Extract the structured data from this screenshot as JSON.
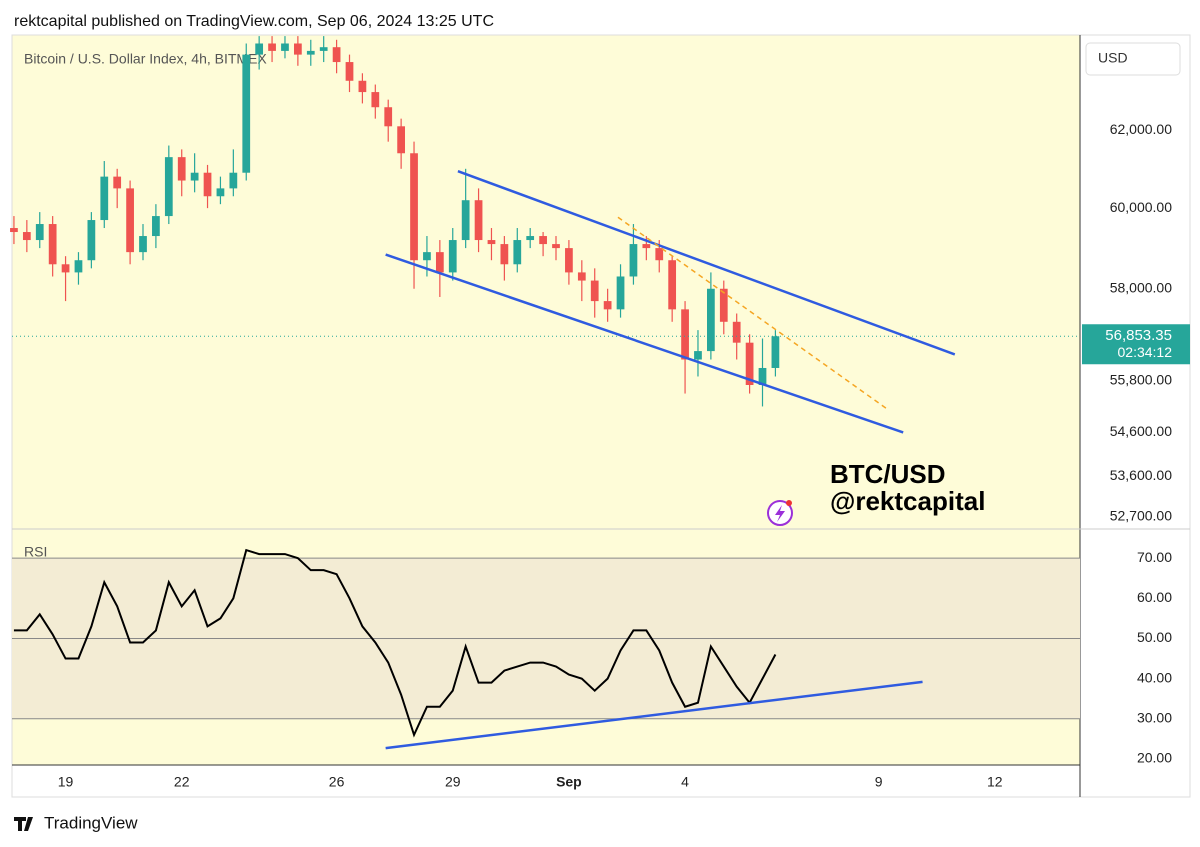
{
  "header": "rektcapital published on TradingView.com, Sep 06, 2024 13:25 UTC",
  "currency": "USD",
  "watermark": [
    "BTC/USD",
    "@rektcapital"
  ],
  "footer": "TradingView",
  "chart_data": [
    {
      "type": "candlestick",
      "title": "Bitcoin / U.S. Dollar Index, 4h, BITMEX",
      "log": true,
      "up_color": "#26a69a",
      "down_color": "#ef5350",
      "categories": [
        null,
        null,
        null,
        null,
        null,
        null,
        null,
        null,
        null,
        null,
        null,
        null,
        null,
        null,
        null,
        null,
        null,
        null,
        null,
        null,
        null,
        null,
        null,
        null,
        null,
        null,
        null,
        null,
        null,
        null,
        null,
        null,
        null,
        null,
        null,
        null,
        null,
        null,
        null,
        null,
        null,
        null,
        null,
        null,
        null,
        null,
        null,
        null,
        null,
        null,
        null,
        null,
        null,
        null,
        null,
        null,
        null,
        null,
        null,
        null
      ],
      "open": [
        59500,
        59400,
        59200,
        59600,
        58600,
        58400,
        58700,
        59700,
        60800,
        60500,
        58900,
        59300,
        59800,
        61300,
        60700,
        60900,
        60300,
        60500,
        60900,
        64000,
        64300,
        64100,
        64300,
        64000,
        64100,
        64200,
        63800,
        63300,
        63000,
        62600,
        62100,
        61400,
        58700,
        58900,
        58400,
        59200,
        60200,
        59200,
        59100,
        58600,
        59200,
        59300,
        59100,
        59000,
        58400,
        58200,
        57700,
        57500,
        58300,
        59100,
        59000,
        58700,
        57500,
        56300,
        56500,
        58000,
        57200,
        56700,
        55700,
        56100
      ],
      "high": [
        59800,
        59700,
        59900,
        59800,
        58800,
        58900,
        59900,
        61200,
        61000,
        60700,
        59600,
        60100,
        61600,
        61500,
        61400,
        61100,
        60800,
        61500,
        64300,
        64500,
        64500,
        64500,
        64500,
        64400,
        64500,
        64400,
        64000,
        63500,
        63200,
        62800,
        62300,
        61700,
        59300,
        59200,
        59500,
        61000,
        60500,
        59500,
        59300,
        59500,
        59500,
        59400,
        59300,
        59200,
        58700,
        58500,
        58000,
        58600,
        59600,
        59300,
        59200,
        58800,
        57700,
        57000,
        58400,
        58200,
        57400,
        56900,
        56800,
        57000
      ],
      "low": [
        59100,
        58900,
        59000,
        58300,
        57700,
        58100,
        58500,
        59500,
        60000,
        58600,
        58700,
        59000,
        59600,
        60300,
        60400,
        60000,
        60100,
        60300,
        60700,
        63600,
        63800,
        63900,
        63700,
        63700,
        63800,
        63500,
        63000,
        62700,
        62300,
        61700,
        61000,
        58000,
        58300,
        57800,
        58200,
        59000,
        58900,
        58700,
        58200,
        58400,
        59000,
        58800,
        58700,
        58100,
        57700,
        57300,
        57200,
        57300,
        58100,
        58700,
        58400,
        57200,
        55500,
        55900,
        56300,
        56900,
        56300,
        55500,
        55200,
        55900
      ],
      "close": [
        59400,
        59200,
        59600,
        58600,
        58400,
        58700,
        59700,
        60800,
        60500,
        58900,
        59300,
        59800,
        61300,
        60700,
        60900,
        60300,
        60500,
        60900,
        64000,
        64300,
        64100,
        64300,
        64000,
        64100,
        64200,
        63800,
        63300,
        63000,
        62600,
        62100,
        61400,
        58700,
        58900,
        58400,
        59200,
        60200,
        59200,
        59100,
        58600,
        59200,
        59300,
        59100,
        59000,
        58400,
        58200,
        57700,
        57500,
        58300,
        59100,
        59000,
        58700,
        57500,
        56300,
        56500,
        58000,
        57200,
        56700,
        55700,
        56100,
        56853.35
      ],
      "last_price": 56853.35,
      "last_price_label": "56,853.35",
      "countdown": "02:34:12",
      "xlim": [
        -0.15,
        82.6
      ],
      "xticks": [
        {
          "value": 4,
          "label": "19"
        },
        {
          "value": 13,
          "label": "22"
        },
        {
          "value": 25,
          "label": "26"
        },
        {
          "value": 34,
          "label": "29"
        },
        {
          "value": 43,
          "label": "Sep",
          "bold": true
        },
        {
          "value": 52,
          "label": "4"
        },
        {
          "value": 67,
          "label": "9"
        },
        {
          "value": 76,
          "label": "12"
        }
      ],
      "ylim": [
        52450,
        64530
      ],
      "yticks": [
        {
          "value": 62000,
          "label": "62,000.00"
        },
        {
          "value": 60000,
          "label": "60,000.00"
        },
        {
          "value": 58000,
          "label": "58,000.00"
        },
        {
          "value": 55800,
          "label": "55,800.00"
        },
        {
          "value": 54600,
          "label": "54,600.00"
        },
        {
          "value": 53600,
          "label": "53,600.00"
        },
        {
          "value": 52700,
          "label": "52,700.00"
        }
      ],
      "trendlines": [
        {
          "x": [
            34.4,
            72.9
          ],
          "y": [
            60940,
            56420
          ],
          "color": "#2f5be0",
          "dashed": false
        },
        {
          "x": [
            28.8,
            68.9
          ],
          "y": [
            58840,
            54600
          ],
          "color": "#2f5be0",
          "dashed": false
        },
        {
          "x": [
            46.8,
            67.8
          ],
          "y": [
            59770,
            55110
          ],
          "color": "#f5a623",
          "dashed": true
        }
      ]
    },
    {
      "type": "line",
      "title": "RSI",
      "color": "#000000",
      "values": [
        52,
        52,
        56,
        51,
        45,
        45,
        53,
        64,
        58,
        49,
        49,
        52,
        64,
        58,
        62,
        53,
        55,
        60,
        72,
        71,
        71,
        71,
        70,
        67,
        67,
        66,
        60,
        53,
        49,
        44,
        36,
        26,
        33,
        33,
        37,
        48,
        39,
        39,
        42,
        43,
        44,
        44,
        43,
        41,
        40,
        37,
        40,
        47,
        52,
        52,
        47,
        39,
        33,
        34,
        48,
        43,
        38,
        34,
        40,
        46
      ],
      "xlim": [
        -0.15,
        82.6
      ],
      "ylim": [
        18.5,
        77
      ],
      "yticks": [
        {
          "value": 70,
          "label": "70.00"
        },
        {
          "value": 60,
          "label": "60.00"
        },
        {
          "value": 50,
          "label": "50.00"
        },
        {
          "value": 40,
          "label": "40.00"
        },
        {
          "value": 30,
          "label": "30.00"
        },
        {
          "value": 20,
          "label": "20.00"
        }
      ],
      "band": [
        30,
        70
      ],
      "hlines": [
        30,
        50,
        70
      ],
      "trendlines": [
        {
          "x": [
            28.8,
            70.4
          ],
          "y": [
            22.7,
            39.2
          ],
          "color": "#2f5be0",
          "dashed": false
        }
      ]
    }
  ]
}
